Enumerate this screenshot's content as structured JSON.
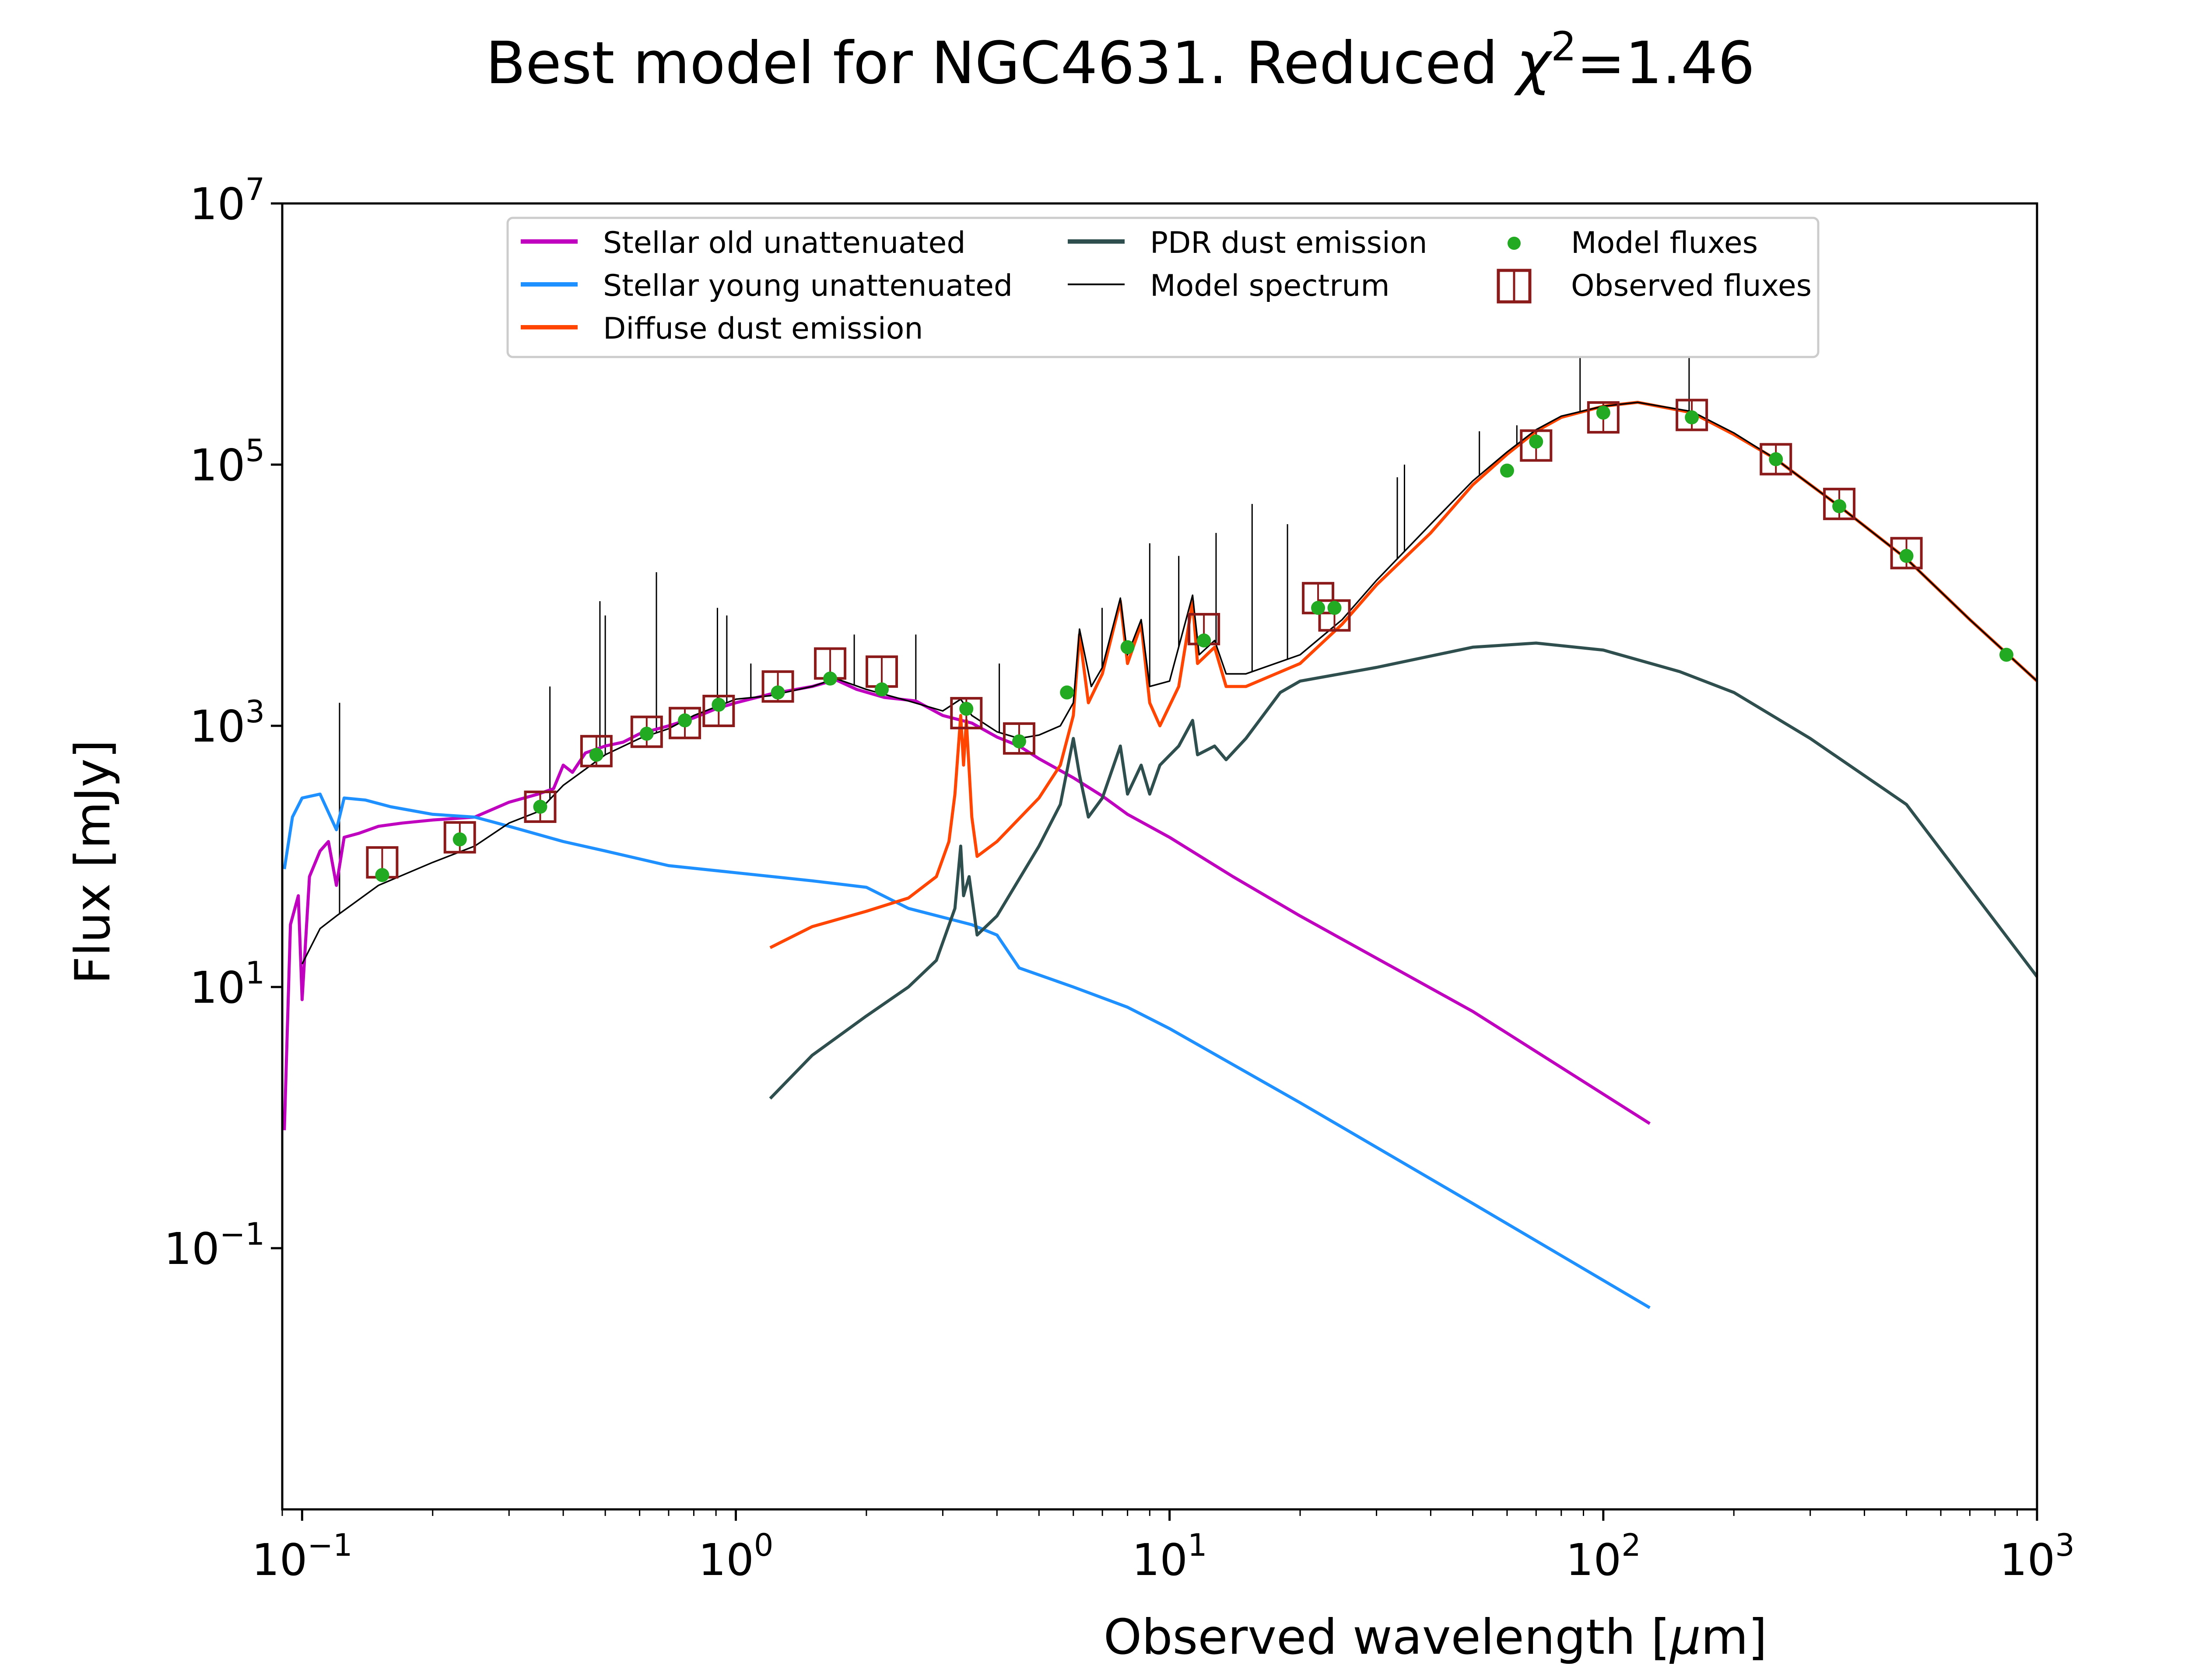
{
  "chart_data": {
    "type": "line",
    "title_main": "Best model for NGC4631. Reduced ",
    "title_chi": "χ",
    "title_exp": "2",
    "title_value": "=1.46",
    "xlabel_main": "Observed wavelength [",
    "xlabel_mu": "μ",
    "xlabel_end": "m]",
    "ylabel": "Flux [mJy]",
    "x_scale": "log",
    "y_scale": "log",
    "xlim": [
      0.09,
      1000
    ],
    "ylim": [
      0.001,
      10000000
    ],
    "grid": false,
    "legend_placement": "top-center",
    "x_ticks": [
      {
        "value": 0.1,
        "base": "10",
        "exp": "−1"
      },
      {
        "value": 1,
        "base": "10",
        "exp": "0"
      },
      {
        "value": 10,
        "base": "10",
        "exp": "1"
      },
      {
        "value": 100,
        "base": "10",
        "exp": "2"
      },
      {
        "value": 1000,
        "base": "10",
        "exp": "3"
      }
    ],
    "y_ticks": [
      {
        "value": 0.1,
        "base": "10",
        "exp": "−1"
      },
      {
        "value": 10,
        "base": "10",
        "exp": "1"
      },
      {
        "value": 1000,
        "base": "10",
        "exp": "3"
      },
      {
        "value": 100000,
        "base": "10",
        "exp": "5"
      },
      {
        "value": 10000000,
        "base": "10",
        "exp": "7"
      }
    ],
    "series": [
      {
        "name": "Stellar old unattenuated",
        "color": "#bf00bf",
        "points": [
          [
            0.091,
            0.8
          ],
          [
            0.094,
            30
          ],
          [
            0.098,
            50
          ],
          [
            0.1,
            8
          ],
          [
            0.104,
            70
          ],
          [
            0.11,
            110
          ],
          [
            0.115,
            130
          ],
          [
            0.12,
            60
          ],
          [
            0.125,
            140
          ],
          [
            0.135,
            150
          ],
          [
            0.15,
            170
          ],
          [
            0.17,
            180
          ],
          [
            0.2,
            190
          ],
          [
            0.25,
            200
          ],
          [
            0.3,
            260
          ],
          [
            0.35,
            300
          ],
          [
            0.37,
            320
          ],
          [
            0.38,
            330
          ],
          [
            0.4,
            500
          ],
          [
            0.42,
            440
          ],
          [
            0.45,
            620
          ],
          [
            0.5,
            700
          ],
          [
            0.55,
            750
          ],
          [
            0.6,
            870
          ],
          [
            0.7,
            1000
          ],
          [
            0.8,
            1150
          ],
          [
            0.9,
            1350
          ],
          [
            1.0,
            1500
          ],
          [
            1.2,
            1750
          ],
          [
            1.5,
            2000
          ],
          [
            1.7,
            2250
          ],
          [
            1.9,
            1900
          ],
          [
            2.2,
            1650
          ],
          [
            2.6,
            1550
          ],
          [
            3.0,
            1200
          ],
          [
            3.5,
            1050
          ],
          [
            4.0,
            820
          ],
          [
            4.5,
            700
          ],
          [
            5,
            560
          ],
          [
            6,
            400
          ],
          [
            7,
            290
          ],
          [
            8,
            210
          ],
          [
            10,
            140
          ],
          [
            14,
            70
          ],
          [
            20,
            35
          ],
          [
            50,
            6.5
          ],
          [
            128,
            0.9
          ]
        ]
      },
      {
        "name": "Stellar young unattenuated",
        "color": "#1e90ff",
        "points": [
          [
            0.091,
            80
          ],
          [
            0.095,
            200
          ],
          [
            0.1,
            280
          ],
          [
            0.11,
            300
          ],
          [
            0.12,
            160
          ],
          [
            0.125,
            280
          ],
          [
            0.14,
            270
          ],
          [
            0.16,
            240
          ],
          [
            0.2,
            210
          ],
          [
            0.25,
            200
          ],
          [
            0.3,
            170
          ],
          [
            0.4,
            130
          ],
          [
            0.5,
            110
          ],
          [
            0.7,
            85
          ],
          [
            1.0,
            75
          ],
          [
            1.5,
            65
          ],
          [
            2.0,
            58
          ],
          [
            2.5,
            40
          ],
          [
            3.5,
            30
          ],
          [
            4.0,
            25
          ],
          [
            4.5,
            14
          ],
          [
            6,
            10
          ],
          [
            8,
            7
          ],
          [
            10,
            4.8
          ],
          [
            20,
            1.3
          ],
          [
            50,
            0.22
          ],
          [
            128,
            0.035
          ]
        ]
      },
      {
        "name": "Diffuse dust emission",
        "color": "#ff4500",
        "points": [
          [
            1.2,
            20
          ],
          [
            1.5,
            29
          ],
          [
            2.0,
            38
          ],
          [
            2.5,
            48
          ],
          [
            2.9,
            70
          ],
          [
            3.1,
            130
          ],
          [
            3.2,
            300
          ],
          [
            3.3,
            1200
          ],
          [
            3.35,
            500
          ],
          [
            3.4,
            1100
          ],
          [
            3.5,
            200
          ],
          [
            3.6,
            100
          ],
          [
            4.0,
            130
          ],
          [
            5,
            280
          ],
          [
            5.6,
            500
          ],
          [
            6.0,
            1200
          ],
          [
            6.2,
            5000
          ],
          [
            6.5,
            1500
          ],
          [
            7.0,
            2500
          ],
          [
            7.7,
            9000
          ],
          [
            8.0,
            3000
          ],
          [
            8.6,
            6000
          ],
          [
            9.0,
            1500
          ],
          [
            9.5,
            1000
          ],
          [
            10.5,
            2000
          ],
          [
            11.3,
            9000
          ],
          [
            11.6,
            3000
          ],
          [
            12.7,
            4000
          ],
          [
            13.5,
            2000
          ],
          [
            15,
            2000
          ],
          [
            20,
            3000
          ],
          [
            25,
            6000
          ],
          [
            30,
            12000
          ],
          [
            40,
            30000
          ],
          [
            50,
            70000
          ],
          [
            60,
            120000
          ],
          [
            70,
            180000
          ],
          [
            80,
            230000
          ],
          [
            100,
            280000
          ],
          [
            120,
            300000
          ],
          [
            160,
            250000
          ],
          [
            200,
            170000
          ],
          [
            250,
            110000
          ],
          [
            350,
            48000
          ],
          [
            500,
            19000
          ],
          [
            700,
            6500
          ],
          [
            1000,
            2200
          ]
        ]
      },
      {
        "name": "PDR dust emission",
        "color": "#2f4f4f",
        "points": [
          [
            1.2,
            1.4
          ],
          [
            1.5,
            3
          ],
          [
            2.0,
            6
          ],
          [
            2.5,
            10
          ],
          [
            2.9,
            16
          ],
          [
            3.2,
            40
          ],
          [
            3.3,
            120
          ],
          [
            3.35,
            50
          ],
          [
            3.45,
            70
          ],
          [
            3.6,
            25
          ],
          [
            4.0,
            35
          ],
          [
            5,
            120
          ],
          [
            5.6,
            250
          ],
          [
            6.0,
            800
          ],
          [
            6.2,
            420
          ],
          [
            6.5,
            200
          ],
          [
            7.0,
            280
          ],
          [
            7.7,
            700
          ],
          [
            8.0,
            300
          ],
          [
            8.6,
            500
          ],
          [
            9.0,
            300
          ],
          [
            9.5,
            500
          ],
          [
            10.5,
            700
          ],
          [
            11.3,
            1100
          ],
          [
            11.6,
            600
          ],
          [
            12.7,
            700
          ],
          [
            13.5,
            550
          ],
          [
            15,
            800
          ],
          [
            18,
            1800
          ],
          [
            20,
            2200
          ],
          [
            30,
            2800
          ],
          [
            50,
            4000
          ],
          [
            70,
            4300
          ],
          [
            100,
            3800
          ],
          [
            150,
            2600
          ],
          [
            200,
            1800
          ],
          [
            300,
            800
          ],
          [
            500,
            250
          ],
          [
            1000,
            12
          ]
        ]
      },
      {
        "name": "Model spectrum",
        "color": "#000000",
        "points": [
          [
            0.1,
            15
          ],
          [
            0.11,
            28
          ],
          [
            0.12,
            35
          ],
          [
            0.15,
            60
          ],
          [
            0.2,
            90
          ],
          [
            0.25,
            120
          ],
          [
            0.3,
            180
          ],
          [
            0.35,
            220
          ],
          [
            0.4,
            350
          ],
          [
            0.5,
            600
          ],
          [
            0.6,
            800
          ],
          [
            0.7,
            950
          ],
          [
            0.8,
            1200
          ],
          [
            1.0,
            1600
          ],
          [
            1.2,
            1700
          ],
          [
            1.5,
            2000
          ],
          [
            1.7,
            2300
          ],
          [
            2.0,
            1900
          ],
          [
            2.5,
            1550
          ],
          [
            3.0,
            1300
          ],
          [
            3.3,
            1600
          ],
          [
            3.5,
            1200
          ],
          [
            4.0,
            900
          ],
          [
            4.5,
            800
          ],
          [
            5,
            850
          ],
          [
            5.6,
            1000
          ],
          [
            6.0,
            1500
          ],
          [
            6.2,
            5500
          ],
          [
            6.6,
            2000
          ],
          [
            7.0,
            2800
          ],
          [
            7.7,
            9500
          ],
          [
            8.0,
            3500
          ],
          [
            8.6,
            6500
          ],
          [
            9.0,
            2000
          ],
          [
            10,
            2200
          ],
          [
            11.3,
            10000
          ],
          [
            11.7,
            3500
          ],
          [
            12.7,
            4500
          ],
          [
            13.5,
            2500
          ],
          [
            15,
            2500
          ],
          [
            20,
            3500
          ],
          [
            25,
            6500
          ],
          [
            30,
            13000
          ],
          [
            40,
            35000
          ],
          [
            50,
            75000
          ],
          [
            60,
            125000
          ],
          [
            70,
            185000
          ],
          [
            80,
            235000
          ],
          [
            100,
            280000
          ],
          [
            120,
            300000
          ],
          [
            160,
            255000
          ],
          [
            200,
            175000
          ],
          [
            250,
            110000
          ],
          [
            350,
            48000
          ],
          [
            500,
            19000
          ],
          [
            700,
            6500
          ],
          [
            1000,
            2200
          ]
        ]
      }
    ],
    "emission_lines": [
      [
        0.122,
        1500
      ],
      [
        0.486,
        9000
      ],
      [
        0.5,
        7000
      ],
      [
        0.656,
        15000
      ],
      [
        0.3727,
        2000
      ],
      [
        0.9069,
        8000
      ],
      [
        0.9532,
        7000
      ],
      [
        1.083,
        3000
      ],
      [
        1.875,
        5000
      ],
      [
        2.6,
        5000
      ],
      [
        4.05,
        3000
      ],
      [
        6.99,
        8000
      ],
      [
        9.0,
        25000
      ],
      [
        10.5,
        20000
      ],
      [
        12.8,
        30000
      ],
      [
        15.5,
        50000
      ],
      [
        18.7,
        35000
      ],
      [
        33.5,
        80000
      ],
      [
        34.8,
        100000
      ],
      [
        51.8,
        180000
      ],
      [
        57,
        100000
      ],
      [
        63.2,
        200000
      ],
      [
        88.4,
        800000
      ],
      [
        157.7,
        4000000
      ]
    ],
    "model_fluxes": {
      "name": "Model fluxes",
      "color": "#22aa22",
      "points": [
        [
          0.153,
          72
        ],
        [
          0.231,
          135
        ],
        [
          0.354,
          240
        ],
        [
          0.477,
          600
        ],
        [
          0.623,
          870
        ],
        [
          0.763,
          1100
        ],
        [
          0.913,
          1450
        ],
        [
          1.25,
          1800
        ],
        [
          1.65,
          2300
        ],
        [
          2.17,
          1900
        ],
        [
          3.4,
          1350
        ],
        [
          4.5,
          760
        ],
        [
          5.8,
          1800
        ],
        [
          8.0,
          4000
        ],
        [
          12,
          4500
        ],
        [
          22,
          8000
        ],
        [
          24,
          8000
        ],
        [
          60,
          90000
        ],
        [
          70,
          150000
        ],
        [
          100,
          250000
        ],
        [
          160,
          230000
        ],
        [
          250,
          110000
        ],
        [
          350,
          48000
        ],
        [
          500,
          20000
        ],
        [
          850,
          3500
        ]
      ]
    },
    "observed_fluxes": {
      "name": "Observed fluxes",
      "color": "#8b1a1a",
      "points": [
        [
          0.153,
          90
        ],
        [
          0.231,
          140
        ],
        [
          0.354,
          240
        ],
        [
          0.477,
          640
        ],
        [
          0.623,
          900
        ],
        [
          0.763,
          1050
        ],
        [
          0.913,
          1300
        ],
        [
          1.25,
          2000
        ],
        [
          1.65,
          3000
        ],
        [
          2.17,
          2600
        ],
        [
          3.4,
          1250
        ],
        [
          4.5,
          800
        ],
        [
          12,
          5500
        ],
        [
          22,
          9500
        ],
        [
          24,
          7000
        ],
        [
          70,
          140000
        ],
        [
          100,
          230000
        ],
        [
          160,
          240000
        ],
        [
          250,
          110000
        ],
        [
          350,
          50000
        ],
        [
          500,
          21000
        ]
      ]
    }
  }
}
